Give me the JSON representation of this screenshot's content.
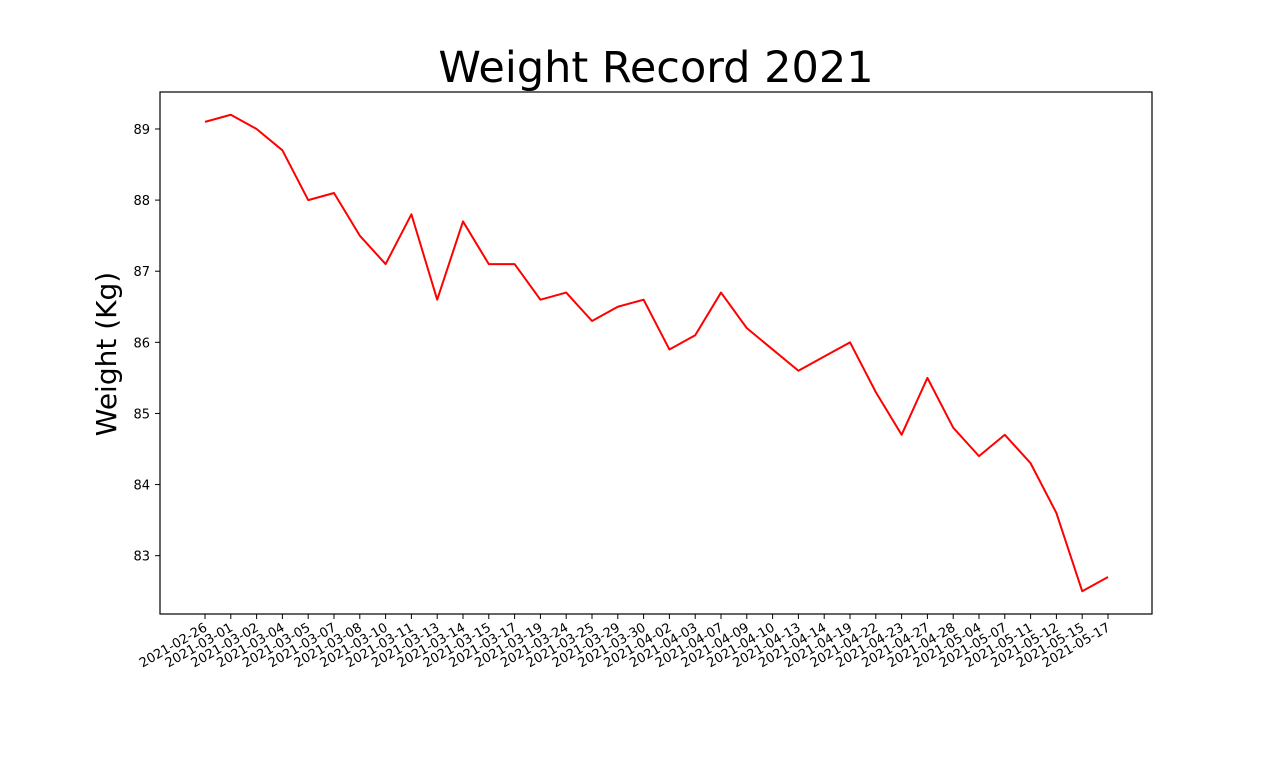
{
  "chart_data": {
    "type": "line",
    "title": "Weight Record 2021",
    "xlabel": "",
    "ylabel": "Weight (Kg)",
    "categories": [
      "2021-02-26",
      "2021-03-01",
      "2021-03-02",
      "2021-03-04",
      "2021-03-05",
      "2021-03-07",
      "2021-03-08",
      "2021-03-10",
      "2021-03-11",
      "2021-03-13",
      "2021-03-14",
      "2021-03-15",
      "2021-03-17",
      "2021-03-19",
      "2021-03-24",
      "2021-03-25",
      "2021-03-29",
      "2021-03-30",
      "2021-04-02",
      "2021-04-03",
      "2021-04-07",
      "2021-04-09",
      "2021-04-10",
      "2021-04-13",
      "2021-04-14",
      "2021-04-19",
      "2021-04-22",
      "2021-04-23",
      "2021-04-27",
      "2021-04-28",
      "2021-05-04",
      "2021-05-07",
      "2021-05-11",
      "2021-05-12",
      "2021-05-15",
      "2021-05-17"
    ],
    "series": [
      {
        "values": [
          89.1,
          89.2,
          89.0,
          88.7,
          88.0,
          88.1,
          87.5,
          87.1,
          87.8,
          86.6,
          87.7,
          87.1,
          87.1,
          86.6,
          86.7,
          86.3,
          86.5,
          86.6,
          85.9,
          86.1,
          86.7,
          86.2,
          85.9,
          85.6,
          85.8,
          86.0,
          85.3,
          84.7,
          85.5,
          84.8,
          84.4,
          84.7,
          84.3,
          83.6,
          82.5,
          82.7
        ],
        "color": "#ff0000"
      }
    ],
    "yticks": [
      83,
      84,
      85,
      86,
      87,
      88,
      89
    ],
    "ylim": [
      82.18,
      89.52
    ],
    "grid": false,
    "legend": "none"
  }
}
